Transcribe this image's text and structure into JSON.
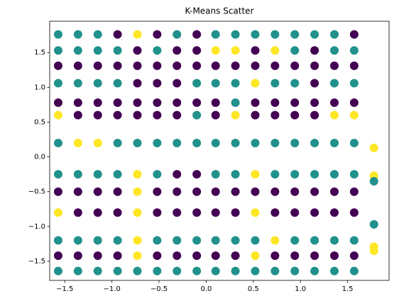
{
  "chart_data": {
    "type": "scatter",
    "title": "K-Means Scatter",
    "colors": [
      "#440154",
      "#21918c",
      "#fde725"
    ],
    "xlim": [
      -1.66,
      1.94
    ],
    "ylim": [
      -1.775,
      1.95
    ],
    "xticks": [
      {
        "value": -1.5,
        "label": "−1.5"
      },
      {
        "value": -1,
        "label": "−1.0"
      },
      {
        "value": -0.5,
        "label": "−0.5"
      },
      {
        "value": 0,
        "label": "0.0"
      },
      0.5,
      {
        "value": 1,
        "label": "1.0"
      },
      1.5
    ],
    "yticks": [
      {
        "value": -1.5,
        "label": "−1.5"
      },
      {
        "value": -1,
        "label": "−1.0"
      },
      {
        "value": -0.5,
        "label": "−0.5"
      },
      {
        "value": 0,
        "label": "0.0"
      },
      0.5,
      {
        "value": 1,
        "label": "1.0"
      },
      1.5
    ],
    "x": [
      -1.57,
      -1.36,
      -1.15,
      -0.94,
      -0.73,
      -0.52,
      -0.31,
      -0.1,
      0.1,
      0.31,
      0.52,
      0.73,
      0.94,
      1.15,
      1.36,
      1.57,
      -1.57,
      -1.36,
      -1.15,
      -0.94,
      -0.73,
      -0.52,
      -0.31,
      -0.1,
      0.1,
      0.31,
      0.52,
      0.73,
      0.94,
      1.15,
      1.36,
      1.57,
      -1.57,
      -1.36,
      -1.15,
      -0.94,
      -0.73,
      -0.52,
      -0.31,
      -0.1,
      0.1,
      0.31,
      0.52,
      0.73,
      0.94,
      1.15,
      1.36,
      1.57,
      -1.57,
      -1.36,
      -1.15,
      -0.94,
      -0.73,
      -0.52,
      -0.31,
      -0.1,
      0.1,
      0.31,
      0.52,
      0.73,
      0.94,
      1.15,
      1.36,
      1.57,
      -1.57,
      -1.36,
      -1.15,
      -0.94,
      -0.73,
      -0.52,
      -0.31,
      -0.1,
      0.1,
      0.31,
      0.52,
      0.73,
      0.94,
      1.15,
      1.36,
      1.57,
      -1.57,
      -1.36,
      -1.15,
      -0.94,
      -0.73,
      -0.52,
      -0.31,
      -0.1,
      0.1,
      0.31,
      0.52,
      0.73,
      0.94,
      1.15,
      1.36,
      1.57,
      -1.57,
      -1.36,
      -1.15,
      -0.94,
      -0.73,
      -0.52,
      -0.31,
      -0.1,
      0.1,
      0.31,
      0.52,
      0.73,
      0.94,
      1.15,
      1.36,
      1.57,
      -1.57,
      -1.36,
      -1.15,
      -0.94,
      -0.73,
      -0.52,
      -0.31,
      -0.1,
      0.1,
      0.31,
      0.52,
      0.73,
      0.94,
      1.15,
      1.36,
      1.57,
      -1.57,
      -1.36,
      -1.15,
      -0.94,
      -0.73,
      -0.52,
      -0.31,
      -0.1,
      0.1,
      0.31,
      0.52,
      0.73,
      0.94,
      1.15,
      1.36,
      1.57,
      -1.57,
      -1.36,
      -1.15,
      -0.94,
      -0.73,
      -0.52,
      -0.31,
      -0.1,
      0.1,
      0.31,
      0.52,
      0.73,
      0.94,
      1.15,
      1.36,
      1.57,
      -1.57,
      -1.36,
      -1.15,
      -0.94,
      -0.73,
      -0.52,
      -0.31,
      -0.1,
      0.1,
      0.31,
      0.52,
      0.73,
      0.94,
      1.15,
      1.36,
      1.57,
      -1.57,
      -1.36,
      -1.15,
      -0.94,
      -0.73,
      -0.52,
      -0.31,
      -0.1,
      0.1,
      0.31,
      0.52,
      0.73,
      0.94,
      1.15,
      1.36,
      1.57,
      -1.57,
      -1.36,
      -1.15,
      -0.94,
      -0.73,
      -0.52,
      -0.31,
      -0.1,
      0.1,
      0.31,
      0.52,
      0.73,
      0.94,
      1.15,
      1.36,
      1.57,
      1.78,
      1.78,
      1.78,
      1.78,
      1.78,
      1.78
    ],
    "y": [
      1.76,
      1.76,
      1.76,
      1.76,
      1.76,
      1.76,
      1.76,
      1.76,
      1.76,
      1.76,
      1.76,
      1.76,
      1.76,
      1.76,
      1.76,
      1.76,
      1.53,
      1.53,
      1.53,
      1.53,
      1.53,
      1.53,
      1.53,
      1.53,
      1.53,
      1.53,
      1.53,
      1.53,
      1.53,
      1.53,
      1.53,
      1.53,
      1.31,
      1.31,
      1.31,
      1.31,
      1.31,
      1.31,
      1.31,
      1.31,
      1.31,
      1.31,
      1.31,
      1.31,
      1.31,
      1.31,
      1.31,
      1.31,
      1.06,
      1.06,
      1.06,
      1.06,
      1.06,
      1.06,
      1.06,
      1.06,
      1.06,
      1.06,
      1.06,
      1.06,
      1.06,
      1.06,
      1.06,
      1.06,
      0.78,
      0.78,
      0.78,
      0.78,
      0.78,
      0.78,
      0.78,
      0.78,
      0.78,
      0.78,
      0.78,
      0.78,
      0.78,
      0.78,
      0.78,
      0.78,
      0.6,
      0.6,
      0.6,
      0.6,
      0.6,
      0.6,
      0.6,
      0.6,
      0.6,
      0.6,
      0.6,
      0.6,
      0.6,
      0.6,
      0.6,
      0.6,
      0.2,
      0.2,
      0.2,
      0.2,
      0.2,
      0.2,
      0.2,
      0.2,
      0.2,
      0.2,
      0.2,
      0.2,
      0.2,
      0.2,
      0.2,
      0.2,
      -0.25,
      -0.25,
      -0.25,
      -0.25,
      -0.25,
      -0.25,
      -0.25,
      -0.25,
      -0.25,
      -0.25,
      -0.25,
      -0.25,
      -0.25,
      -0.25,
      -0.25,
      -0.25,
      -0.5,
      -0.5,
      -0.5,
      -0.5,
      -0.5,
      -0.5,
      -0.5,
      -0.5,
      -0.5,
      -0.5,
      -0.5,
      -0.5,
      -0.5,
      -0.5,
      -0.5,
      -0.5,
      -0.8,
      -0.8,
      -0.8,
      -0.8,
      -0.8,
      -0.8,
      -0.8,
      -0.8,
      -0.8,
      -0.8,
      -0.8,
      -0.8,
      -0.8,
      -0.8,
      -0.8,
      -0.8,
      -1.2,
      -1.2,
      -1.2,
      -1.2,
      -1.2,
      -1.2,
      -1.2,
      -1.2,
      -1.2,
      -1.2,
      -1.2,
      -1.2,
      -1.2,
      -1.2,
      -1.2,
      -1.2,
      -1.42,
      -1.42,
      -1.42,
      -1.42,
      -1.42,
      -1.42,
      -1.42,
      -1.42,
      -1.42,
      -1.42,
      -1.42,
      -1.42,
      -1.42,
      -1.42,
      -1.42,
      -1.42,
      -1.64,
      -1.64,
      -1.64,
      -1.64,
      -1.64,
      -1.64,
      -1.64,
      -1.64,
      -1.64,
      -1.64,
      -1.64,
      -1.64,
      -1.64,
      -1.64,
      -1.64,
      -1.64,
      0.13,
      -0.27,
      -0.35,
      -0.97,
      -1.29,
      -1.35
    ],
    "cluster": [
      1,
      1,
      1,
      0,
      2,
      0,
      1,
      0,
      1,
      1,
      1,
      1,
      1,
      1,
      1,
      0,
      1,
      1,
      1,
      1,
      0,
      1,
      0,
      0,
      2,
      2,
      0,
      2,
      1,
      0,
      1,
      1,
      0,
      0,
      0,
      0,
      0,
      0,
      0,
      0,
      0,
      0,
      0,
      0,
      0,
      0,
      0,
      0,
      1,
      1,
      1,
      1,
      0,
      0,
      0,
      1,
      1,
      1,
      2,
      1,
      1,
      0,
      1,
      1,
      0,
      0,
      0,
      0,
      0,
      0,
      0,
      0,
      0,
      1,
      0,
      0,
      0,
      0,
      0,
      0,
      2,
      0,
      0,
      0,
      0,
      0,
      0,
      1,
      0,
      2,
      0,
      0,
      0,
      0,
      2,
      2,
      1,
      2,
      2,
      1,
      1,
      1,
      1,
      1,
      1,
      1,
      1,
      1,
      1,
      1,
      1,
      1,
      1,
      1,
      1,
      1,
      2,
      1,
      0,
      0,
      1,
      1,
      2,
      1,
      1,
      1,
      1,
      1,
      0,
      0,
      0,
      0,
      2,
      0,
      0,
      0,
      0,
      0,
      0,
      0,
      0,
      0,
      0,
      0,
      2,
      0,
      0,
      0,
      2,
      0,
      0,
      0,
      0,
      0,
      2,
      0,
      0,
      0,
      0,
      0,
      1,
      1,
      1,
      1,
      2,
      1,
      1,
      1,
      1,
      1,
      1,
      2,
      1,
      1,
      1,
      1,
      0,
      0,
      0,
      0,
      2,
      0,
      0,
      0,
      0,
      0,
      2,
      0,
      0,
      0,
      0,
      0,
      1,
      1,
      1,
      1,
      1,
      1,
      1,
      1,
      1,
      1,
      1,
      1,
      1,
      1,
      1,
      1,
      2,
      2,
      1,
      1,
      2,
      2
    ]
  }
}
